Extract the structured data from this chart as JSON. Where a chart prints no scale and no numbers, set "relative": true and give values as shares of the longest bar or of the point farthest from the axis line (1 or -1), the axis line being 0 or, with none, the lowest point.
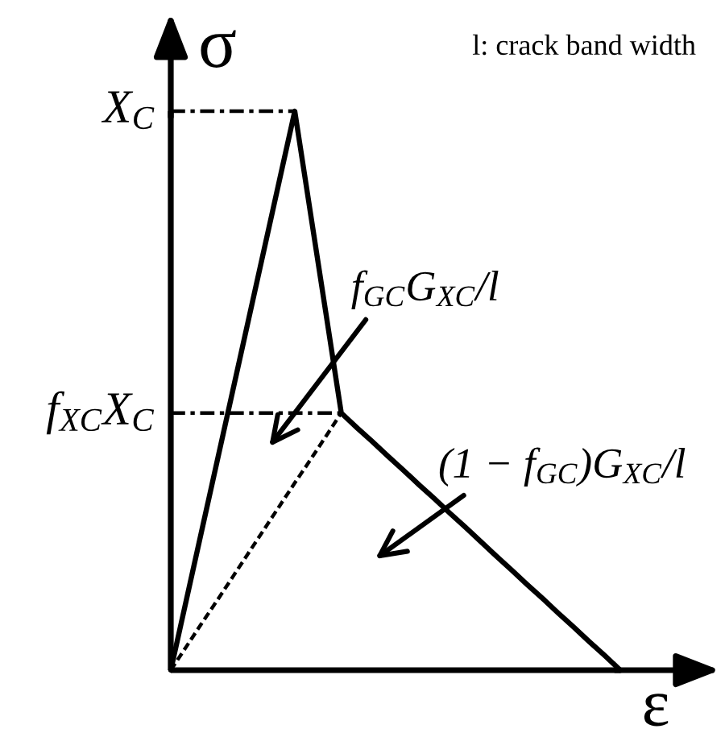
{
  "chart_data": {
    "type": "line",
    "relative": true,
    "xlabel": "ε",
    "ylabel": "σ",
    "categories": [
      null,
      null,
      null,
      null,
      null,
      null,
      null,
      null,
      null,
      null,
      null,
      null,
      null,
      null,
      null,
      null,
      null,
      null,
      null,
      null,
      null,
      null,
      null,
      null,
      null,
      null,
      null,
      null,
      null,
      null
    ],
    "series": [
      {
        "color": "#000000",
        "line_style": "solid",
        "values": [
          0,
          0.125,
          0.25,
          0.375,
          0.5,
          0.625,
          0.75,
          0.875,
          1,
          0.82,
          0.64,
          0.46,
          0.434,
          0.409,
          0.383,
          0.358,
          0.332,
          0.307,
          0.281,
          0.256,
          0.23,
          0.204,
          0.179,
          0.153,
          0.128,
          0.102,
          0.077,
          0.051,
          0.026,
          0
        ]
      },
      {
        "color": "#000000",
        "line_style": "dashed",
        "values": [
          0,
          0.042,
          0.084,
          0.125,
          0.167,
          0.209,
          0.251,
          0.293,
          0.335,
          0.376,
          0.418,
          0.46,
          null,
          null,
          null,
          null,
          null,
          null,
          null,
          null,
          null,
          null,
          null,
          null,
          null,
          null,
          null,
          null,
          null,
          null
        ]
      }
    ],
    "ref_lines": [
      {
        "axis": "y",
        "value": 1,
        "label": "X$_{C}$",
        "color": "#000000",
        "line_style": "dashdot"
      },
      {
        "axis": "y",
        "value": 0.46,
        "label": "f$_{XC}$X$_{C}$",
        "color": "#000000",
        "line_style": "dashdot"
      }
    ],
    "annotations": [
      "f$_{GC}$G$_{XC}$/l",
      "(1 − f$_{GC}$)G$_{XC}$/l",
      "l: crack band width"
    ],
    "marker": "none"
  }
}
